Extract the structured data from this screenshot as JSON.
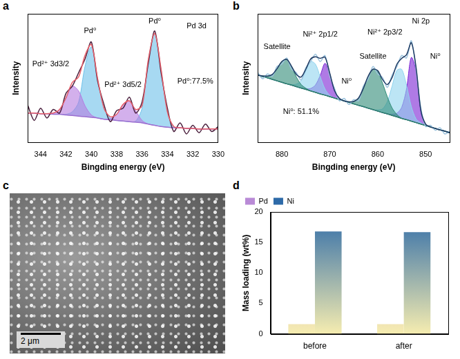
{
  "chart_data": [
    {
      "panel": "a",
      "type": "line",
      "x_label": "Bingding energy (eV)",
      "y_label": "Intensity",
      "x": [
        345,
        344.5,
        344,
        343.5,
        343,
        342.5,
        342,
        341.5,
        341,
        340.5,
        340,
        339.5,
        339,
        338.5,
        338,
        337.5,
        337,
        336.5,
        336,
        335.5,
        335,
        334.5,
        334,
        333.5,
        333,
        332.5,
        332,
        331.5,
        331,
        330.5,
        330
      ],
      "xlim": [
        345,
        330
      ],
      "xticks": [
        344,
        342,
        340,
        338,
        336,
        334,
        332,
        330
      ],
      "ylim": [
        0,
        105
      ],
      "tick_labels": "x",
      "grid": false,
      "series": [
        {
          "type": "line",
          "color": "#9b6fd0",
          "values": [
            24,
            24,
            23.5,
            23.5,
            23,
            23,
            22.5,
            22,
            21.5,
            21,
            20.5,
            20,
            19,
            18.5,
            18,
            17.5,
            17,
            16.5,
            16,
            15,
            14,
            13,
            12.5,
            12,
            12,
            11.5,
            11.5,
            11,
            11,
            11,
            11
          ]
        },
        {
          "type": "area",
          "color": "#b57be0",
          "values": [
            24,
            24,
            23.5,
            23.5,
            24,
            27,
            36,
            46,
            42,
            30,
            22.5,
            20,
            19,
            19.5,
            23,
            31,
            34,
            26,
            18,
            15,
            14,
            13,
            12.5,
            12,
            12,
            11.5,
            11.5,
            11,
            11,
            11,
            11
          ]
        },
        {
          "type": "area",
          "color": "#6cc0ea",
          "values": [
            24,
            24,
            23.5,
            23.5,
            23,
            23,
            23,
            25,
            33,
            62,
            78,
            52,
            28,
            20,
            18,
            17.5,
            17,
            17.5,
            28,
            68,
            89,
            60,
            25,
            13,
            12,
            11.5,
            11.5,
            11,
            11,
            11,
            11
          ]
        },
        {
          "type": "line",
          "color": "#e8606a",
          "values": [
            24,
            24,
            23.5,
            23.5,
            24,
            27,
            36.5,
            49,
            53.5,
            71,
            80,
            52,
            28,
            21,
            23,
            31,
            34,
            27,
            30,
            68,
            89,
            60,
            25,
            13,
            12,
            11.5,
            11.5,
            11,
            11,
            11,
            11
          ]
        },
        {
          "type": "line",
          "color": "#4a1f3d",
          "values": [
            30,
            18,
            28,
            20,
            27,
            24,
            40,
            46,
            57,
            68,
            82,
            50,
            31,
            17,
            26,
            28,
            37,
            24,
            33,
            65,
            91,
            57,
            28,
            9,
            16,
            7,
            14,
            8,
            15,
            9,
            13
          ]
        }
      ],
      "annotations": [
        {
          "text": "Pd 3d",
          "x": 331.7,
          "y": 95
        },
        {
          "text": "Pd⁰",
          "x": 340.1,
          "y": 91
        },
        {
          "text": "Pd⁰",
          "x": 335,
          "y": 99
        },
        {
          "text": "Pd²⁺ 3d3/2",
          "x": 343.2,
          "y": 64
        },
        {
          "text": "Pd²⁺ 3d5/2",
          "x": 337.5,
          "y": 47
        },
        {
          "text": "Pd⁰:77.5%",
          "x": 331.8,
          "y": 50
        }
      ]
    },
    {
      "panel": "b",
      "type": "line",
      "x_label": "Bingding energy (eV)",
      "y_label": "Intensity",
      "x": [
        885,
        884,
        883,
        882,
        881,
        880,
        879,
        878,
        877,
        876,
        875,
        874,
        873,
        872,
        871,
        870,
        869,
        868,
        867,
        866,
        865,
        864,
        863,
        862,
        861,
        860,
        859,
        858,
        857,
        856,
        855,
        854,
        853,
        852,
        851,
        850,
        849,
        848,
        847,
        846,
        845
      ],
      "xlim": [
        885,
        845
      ],
      "xticks": [
        880,
        870,
        860,
        850
      ],
      "ylim": [
        0,
        105
      ],
      "tick_labels": "x",
      "grid": false,
      "series": [
        {
          "type": "line",
          "color": "#2e7d6e",
          "values": [
            55,
            53.8,
            52.7,
            51.5,
            50.3,
            49.1,
            47.9,
            46.8,
            45.6,
            44.4,
            43.3,
            42.1,
            40.9,
            39.7,
            38.6,
            37.4,
            36.2,
            35,
            33.9,
            32.7,
            31.5,
            30.3,
            29.2,
            28,
            26.8,
            25.6,
            24.4,
            23.3,
            22.1,
            20.9,
            19.7,
            18.6,
            17.4,
            16.2,
            15,
            13.9,
            12.7,
            11.5,
            10.3,
            9.2,
            8
          ]
        },
        {
          "type": "area",
          "color": "#2e8b76",
          "values": [
            55,
            54.3,
            54.2,
            55.5,
            60.3,
            66.1,
            67.9,
            61.8,
            53.6,
            47.4,
            44.3,
            42.1,
            40.9,
            39.7,
            38.6,
            37.4,
            36.2,
            35,
            33.9,
            32.7,
            31.5,
            30.3,
            29.2,
            28,
            26.8,
            25.6,
            24.4,
            23.3,
            22.1,
            20.9,
            19.7,
            18.6,
            17.4,
            16.2,
            15,
            13.9,
            12.7,
            11.5,
            10.3,
            9.2,
            8
          ]
        },
        {
          "type": "area",
          "color": "#2e8b76",
          "values": [
            55,
            53.8,
            52.7,
            51.5,
            50.3,
            49.1,
            47.9,
            46.8,
            45.6,
            44.4,
            43.3,
            42.1,
            40.9,
            39.7,
            38.6,
            37.4,
            36.2,
            35,
            33.9,
            33.2,
            33.5,
            36.3,
            44.2,
            54,
            59.8,
            57.6,
            48.4,
            37.3,
            28.1,
            22.9,
            19.7,
            18.6,
            17.4,
            16.2,
            15,
            13.9,
            12.7,
            11.5,
            10.3,
            9.2,
            8
          ]
        },
        {
          "type": "area",
          "color": "#8fd3ee",
          "values": [
            55,
            53.8,
            52.7,
            51.5,
            50.3,
            49.1,
            47.9,
            47.3,
            47.6,
            50.4,
            58.3,
            66.1,
            63.9,
            53.7,
            43.6,
            38.4,
            36.2,
            35,
            33.9,
            32.7,
            31.5,
            30.3,
            29.2,
            28,
            26.8,
            25.6,
            24.4,
            23.3,
            22.1,
            20.9,
            19.7,
            18.6,
            17.4,
            16.2,
            15,
            13.9,
            12.7,
            11.5,
            10.3,
            9.2,
            8
          ]
        },
        {
          "type": "area",
          "color": "#8fd3ee",
          "values": [
            55,
            53.8,
            52.7,
            51.5,
            50.3,
            49.1,
            47.9,
            46.8,
            45.6,
            44.4,
            43.3,
            42.1,
            40.9,
            39.7,
            38.6,
            37.4,
            36.2,
            35,
            33.9,
            32.7,
            31.5,
            30.3,
            29.2,
            28,
            26.8,
            26.6,
            27.4,
            33.3,
            46.1,
            58.9,
            59.7,
            46.6,
            29.4,
            19.2,
            16,
            13.9,
            12.7,
            11.5,
            10.3,
            9.2,
            8
          ]
        },
        {
          "type": "area",
          "color": "#7a22d4",
          "values": [
            55,
            53.8,
            52.7,
            51.5,
            50.3,
            49.1,
            47.9,
            46.8,
            45.6,
            44.4,
            43.8,
            44.1,
            46.9,
            54.7,
            64.6,
            55.4,
            42.2,
            36,
            33.9,
            32.7,
            31.5,
            30.3,
            29.2,
            28,
            26.8,
            25.6,
            24.4,
            23.3,
            22.1,
            20.9,
            19.7,
            18.6,
            17.4,
            16.2,
            15,
            13.9,
            12.7,
            11.5,
            10.3,
            9.2,
            8
          ]
        },
        {
          "type": "area",
          "color": "#7a22d4",
          "values": [
            55,
            53.8,
            52.7,
            51.5,
            50.3,
            49.1,
            47.9,
            46.8,
            45.6,
            44.4,
            43.3,
            42.1,
            40.9,
            39.7,
            38.6,
            37.4,
            36.2,
            35,
            33.9,
            32.7,
            31.5,
            30.3,
            29.2,
            28,
            26.8,
            25.6,
            24.4,
            23.3,
            23.1,
            23.9,
            28.7,
            43.6,
            69.4,
            58.2,
            25,
            14.9,
            12.7,
            11.5,
            10.3,
            9.2,
            8
          ]
        },
        {
          "type": "line",
          "color": "#1f3b63",
          "values": [
            55,
            54.3,
            54.2,
            55.5,
            60.3,
            66.1,
            67.9,
            62.3,
            55.6,
            53.4,
            59.8,
            68.1,
            69.9,
            68.7,
            69.6,
            56.4,
            42.2,
            36,
            33.9,
            33.2,
            33.5,
            36.3,
            44.2,
            54,
            59.8,
            58.6,
            51.4,
            47.3,
            53.1,
            63.9,
            68.7,
            71.6,
            81.4,
            61.2,
            26,
            14.9,
            12.7,
            11.5,
            10.3,
            9.2,
            8
          ]
        },
        {
          "type": "line",
          "color": "#9cc3dd",
          "values": [
            57,
            52,
            56,
            54,
            62,
            64,
            69,
            60,
            57,
            51,
            61,
            66,
            72,
            66,
            71,
            54,
            44,
            34,
            36,
            31,
            35,
            34,
            46,
            52,
            62,
            56,
            53,
            45,
            55,
            62,
            71,
            69,
            83,
            59,
            28,
            13,
            14,
            10,
            12,
            7,
            9
          ]
        }
      ],
      "annotations": [
        {
          "text": "Ni 2p",
          "x": 851,
          "y": 99
        },
        {
          "text": "Satellite",
          "x": 881,
          "y": 78
        },
        {
          "text": "Ni²⁺ 2p1/2",
          "x": 872,
          "y": 88
        },
        {
          "text": "Ni⁰",
          "x": 866.5,
          "y": 50
        },
        {
          "text": "Satellite",
          "x": 861,
          "y": 70
        },
        {
          "text": "Ni²⁺ 2p3/2",
          "x": 858.5,
          "y": 90
        },
        {
          "text": "Ni⁰",
          "x": 848,
          "y": 70
        },
        {
          "text": "Ni⁰: 51.1%",
          "x": 876,
          "y": 25
        }
      ]
    },
    {
      "panel": "d",
      "type": "bar",
      "y_label": "Mass loading (wt%)",
      "categories": [
        "before",
        "after"
      ],
      "series": [
        {
          "name": "Pd",
          "color": "#b98ad6",
          "values": [
            1.6,
            1.6
          ]
        },
        {
          "name": "Ni",
          "color": "#2d6aa8",
          "values": [
            16.8,
            16.7
          ]
        }
      ],
      "ylim": [
        0,
        20
      ],
      "yticks": [
        0,
        5,
        10,
        15,
        20
      ],
      "grid": false,
      "legend": "top-left"
    }
  ],
  "image": {
    "panel": "c",
    "scale_bar": "2 μm"
  }
}
